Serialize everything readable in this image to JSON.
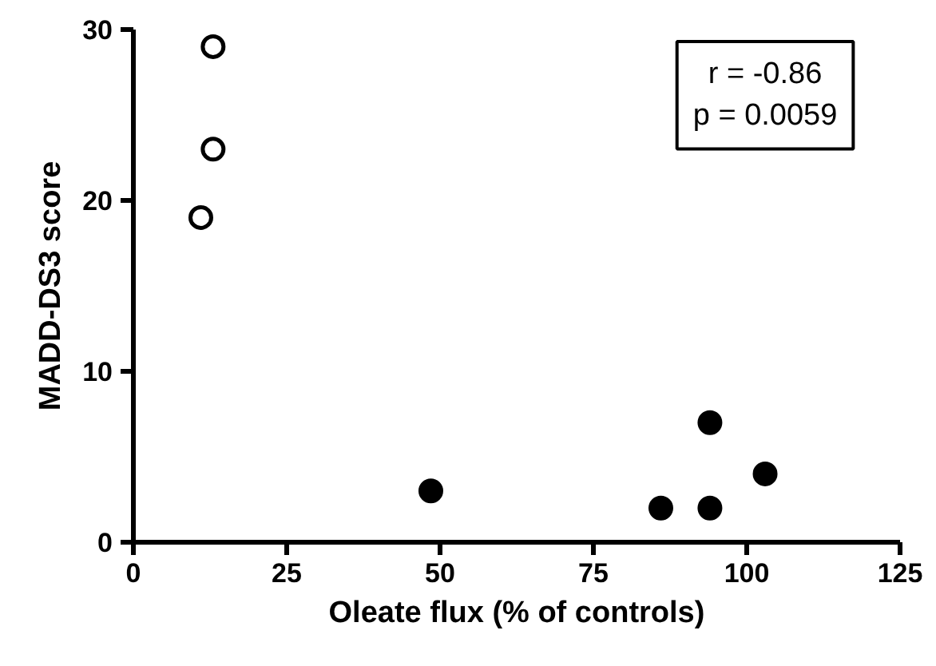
{
  "chart_data": {
    "type": "scatter",
    "xlabel": "Oleate flux (% of controls)",
    "ylabel": "MADD-DS3 score",
    "xlim": [
      0,
      125
    ],
    "xticks": [
      0,
      25,
      50,
      75,
      100,
      125
    ],
    "ylim": [
      0,
      30
    ],
    "yticks": [
      0,
      10,
      20,
      30
    ],
    "grid": false,
    "marker": "circle",
    "series": [
      {
        "color": "#ffffff",
        "x": [
          11,
          13,
          13
        ],
        "values": [
          19,
          23,
          29
        ]
      },
      {
        "color": "#000000",
        "x": [
          48.5,
          86,
          94,
          94,
          103
        ],
        "values": [
          3,
          2,
          2,
          7,
          4
        ]
      }
    ],
    "annotations": [
      "r = -0.86\np = 0.0059"
    ]
  }
}
